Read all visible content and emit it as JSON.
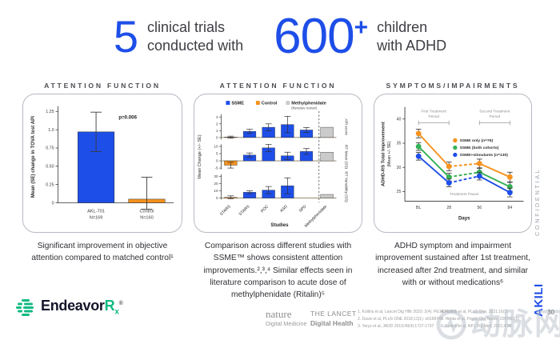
{
  "colors": {
    "accent_blue": "#1e4ee8",
    "accent_orange": "#f6921e",
    "accent_green": "#35b156",
    "gray_bar": "#cbcbcb",
    "brand_green": "#10ba82",
    "text_dark": "#3c3c43"
  },
  "header": {
    "stat1": {
      "number": "5",
      "line1": "clinical trials",
      "line2": "conducted with"
    },
    "stat2": {
      "number": "600",
      "plus": "+",
      "line1": "children",
      "line2": "with ADHD"
    }
  },
  "panels": [
    {
      "title": "ATTENTION FUNCTION",
      "caption": "Significant improvement in objective attention compared to matched control¹"
    },
    {
      "title": "ATTENTION FUNCTION",
      "caption": "Comparison across different studies with SSME™ shows consistent attention improvements.²,³,⁴ Similar effects seen in literature comparison to acute dose of methylphenidate (Ritalin)⁵"
    },
    {
      "title": "SYMPTOMS/IMPAIRMENTS",
      "caption": "ADHD symptom and impairment improvement sustained after 1st treatment, increased after 2nd treatment, and similar with or without medications⁶"
    }
  ],
  "chart_data": [
    {
      "type": "bar",
      "ylabel": "Mean (SE) change in TOVA test API",
      "ylim": [
        0,
        1.3
      ],
      "yticks": [
        0,
        0.25,
        0.5,
        0.75,
        1.0,
        1.25
      ],
      "ytick_labels": [
        "0",
        "0.25",
        "0.50",
        "0.75",
        "1.0",
        "1.25"
      ],
      "annotation": "p=0.006",
      "categories": [
        {
          "label": "AKL-T01",
          "sub": "N=169"
        },
        {
          "label": "Control",
          "sub": "N=160"
        }
      ],
      "values": [
        0.97,
        0.05
      ],
      "errors": [
        0.27,
        0.3
      ],
      "colors": [
        "#1e4ee8",
        "#f6921e"
      ]
    },
    {
      "type": "bar-small-multiples",
      "legend": [
        {
          "label": "SSME",
          "color": "#1e4ee8"
        },
        {
          "label": "Control",
          "color": "#f6921e"
        },
        {
          "label": "Methylphenidate",
          "sub": "(literature review)",
          "color": "#cbcbcb"
        }
      ],
      "ylabel": "Mean Change (+/- SE)",
      "xlabel": "Studies",
      "categories": [
        "STARS",
        "STARS",
        "POC",
        "ASD",
        "SPD",
        "Methylphenidate"
      ],
      "bar_colors": [
        "#f6921e",
        "#1e4ee8",
        "#1e4ee8",
        "#1e4ee8",
        "#1e4ee8",
        "#cbcbcb"
      ],
      "subplots": [
        {
          "label": "API score",
          "ylim": [
            -0.3,
            3.4
          ],
          "yticks": [
            0,
            1,
            2,
            3
          ],
          "values": [
            0.05,
            0.9,
            1.5,
            1.9,
            1.1,
            1.5
          ],
          "errors": [
            0.15,
            0.3,
            0.5,
            1.2,
            0.35,
            0
          ]
        },
        {
          "label": "RT Mean (SS)",
          "ylim": [
            -6,
            11.5
          ],
          "yticks": [
            -5,
            0,
            5,
            10
          ],
          "values": [
            -3,
            4,
            9,
            3.5,
            6.5,
            6
          ],
          "errors": [
            2,
            1.5,
            2.5,
            2.5,
            2,
            0
          ]
        },
        {
          "label": "RT Variability (SS)",
          "ylim": [
            -2,
            33
          ],
          "yticks": [
            0,
            10,
            20,
            30
          ],
          "values": [
            1,
            8,
            11,
            17,
            null,
            5
          ],
          "errors": [
            2,
            2,
            5,
            11,
            null,
            0
          ]
        }
      ]
    },
    {
      "type": "line",
      "ylabel_line1": "ADHD-RS Total Improvement",
      "ylabel_line2": "(Mean +/- SE)",
      "xlabel": "Days",
      "x_labels": [
        "BL",
        "28",
        "56",
        "84"
      ],
      "yticks": [
        25,
        30,
        35,
        40
      ],
      "ylim": [
        23,
        42.5
      ],
      "annotations": {
        "first_line1": "First Treatment",
        "first_line2": "Period",
        "second_line1": "Second Treatment",
        "second_line2": "Period",
        "pause": "Treatment Pause"
      },
      "series": [
        {
          "name": "SSME only (n=76)",
          "color": "#f6921e",
          "values": [
            37,
            30.2,
            30.8,
            28
          ],
          "errors": [
            0.9,
            0.9,
            0.9,
            1.0
          ]
        },
        {
          "name": "SSME (both cohorts)",
          "color": "#35b156",
          "values": [
            34.3,
            28,
            29,
            26
          ],
          "errors": [
            0.8,
            0.8,
            0.8,
            0.9
          ]
        },
        {
          "name": "SSME+stimulants (n=130)",
          "color": "#1e4ee8",
          "values": [
            32.3,
            26.8,
            28.2,
            24.8
          ],
          "errors": [
            0.8,
            0.8,
            0.8,
            0.9
          ]
        }
      ]
    }
  ],
  "footer": {
    "brand": {
      "name": "Endeavor",
      "rx": "R",
      "rx_sub": "x",
      "reg": "®"
    },
    "journals": [
      {
        "name": "nature",
        "sub": "Digital Medicine"
      },
      {
        "name": "THE LANCET",
        "sub": "Digital Health"
      }
    ],
    "citations_col1": [
      "1. Kollins et al, Lancet Dig Hlth 2020; 2(4): PE168-E178",
      "2. Davis et al, PLoS ONE 2018;13(1): e0189749",
      "3. Yerys et al, JADD 2019;49(4):1727-1737"
    ],
    "citations_col2": [
      "4. Kollins et al, PLoS One, 2021;16(1)",
      "5. Hirota et al, Psych Clin Neuro, 2007;61(5)",
      "6. Kollins et al, NPJ Dig Med, 2021;4:58"
    ]
  },
  "confidential": {
    "brand": "AKILI",
    "label": "CONFIDENTIAL"
  },
  "page_number": "30",
  "watermark": {
    "text": "动脉网"
  }
}
